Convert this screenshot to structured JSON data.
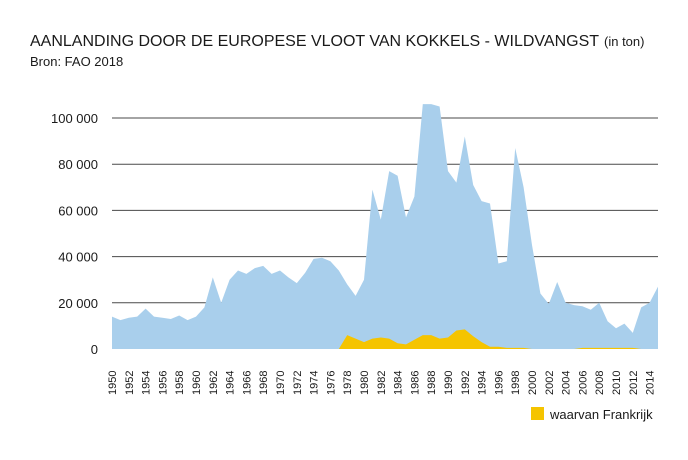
{
  "chart_data": {
    "type": "area",
    "title": "AANLANDING DOOR DE EUROPESE VLOOT VAN KOKKELS - WILDVANGST",
    "title_unit": "(in ton)",
    "subtitle": "Bron: FAO 2018",
    "xlabel": "",
    "ylabel": "",
    "ylim": [
      0,
      105000
    ],
    "yticks": [
      0,
      20000,
      40000,
      60000,
      80000,
      100000
    ],
    "ytick_labels": [
      "0",
      "20 000",
      "40 000",
      "60 000",
      "80 000",
      "100 000"
    ],
    "xtick_labels": [
      "1950",
      "1952",
      "1954",
      "1956",
      "1958",
      "1960",
      "1962",
      "1964",
      "1966",
      "1968",
      "1970",
      "1972",
      "1974",
      "1976",
      "1978",
      "1980",
      "1982",
      "1984",
      "1986",
      "1988",
      "1990",
      "1992",
      "1994",
      "1996",
      "1998",
      "2000",
      "2002",
      "2004",
      "2006",
      "2008",
      "2010",
      "2012",
      "2014"
    ],
    "grid": true,
    "legend_position": "bottom-right",
    "x": [
      1950,
      1951,
      1952,
      1953,
      1954,
      1955,
      1956,
      1957,
      1958,
      1959,
      1960,
      1961,
      1962,
      1963,
      1964,
      1965,
      1966,
      1967,
      1968,
      1969,
      1970,
      1971,
      1972,
      1973,
      1974,
      1975,
      1976,
      1977,
      1978,
      1979,
      1980,
      1981,
      1982,
      1983,
      1984,
      1985,
      1986,
      1987,
      1988,
      1989,
      1990,
      1991,
      1992,
      1993,
      1994,
      1995,
      1996,
      1997,
      1998,
      1999,
      2000,
      2001,
      2002,
      2003,
      2004,
      2005,
      2006,
      2007,
      2008,
      2009,
      2010,
      2011,
      2012,
      2013,
      2014,
      2015
    ],
    "series": [
      {
        "name": "",
        "color": "#a9cfec",
        "values": [
          14000,
          12500,
          13500,
          14000,
          17500,
          14000,
          13500,
          13000,
          14500,
          12500,
          14000,
          18000,
          31000,
          20000,
          30000,
          34000,
          32500,
          35000,
          36000,
          32500,
          34000,
          31000,
          28500,
          33000,
          39000,
          39500,
          38000,
          34000,
          28000,
          23000,
          30000,
          69000,
          56000,
          77000,
          75000,
          57000,
          66000,
          106000,
          106000,
          105000,
          77000,
          72000,
          92000,
          71000,
          64000,
          63000,
          37000,
          38000,
          87000,
          70000,
          45000,
          24000,
          19500,
          29000,
          20000,
          19000,
          18500,
          17000,
          20000,
          12000,
          9000,
          11000,
          7000,
          18000,
          20000,
          27000
        ]
      },
      {
        "name": "waarvan Frankrijk",
        "color": "#f5c400",
        "values": [
          0,
          0,
          0,
          0,
          0,
          0,
          0,
          0,
          0,
          0,
          0,
          0,
          0,
          0,
          0,
          0,
          0,
          0,
          0,
          0,
          0,
          0,
          0,
          0,
          0,
          0,
          0,
          0,
          6000,
          4500,
          3000,
          4500,
          5000,
          4500,
          2500,
          2000,
          4000,
          6000,
          6000,
          4500,
          5000,
          8000,
          8500,
          5500,
          3000,
          1000,
          1000,
          500,
          500,
          500,
          0,
          0,
          0,
          0,
          0,
          0,
          500,
          500,
          500,
          500,
          500,
          500,
          500,
          0,
          0,
          0
        ]
      }
    ]
  },
  "legend": {
    "label": "waarvan Frankrijk",
    "color": "#f5c400"
  }
}
